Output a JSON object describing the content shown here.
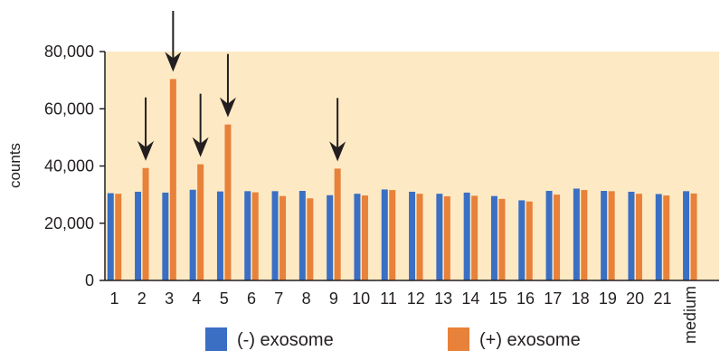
{
  "chart_data": {
    "type": "bar",
    "ylabel": "counts",
    "ylim": [
      0,
      80000
    ],
    "yticks": [
      "0",
      "20,000",
      "40,000",
      "60,000",
      "80,000"
    ],
    "ytick_values": [
      0,
      20000,
      40000,
      60000,
      80000
    ],
    "categories": [
      "1",
      "2",
      "3",
      "4",
      "5",
      "6",
      "7",
      "8",
      "9",
      "10",
      "11",
      "12",
      "13",
      "14",
      "15",
      "16",
      "17",
      "18",
      "19",
      "20",
      "21",
      "medium"
    ],
    "series": [
      {
        "name": "(-) exosome",
        "color": "#3a6fc4",
        "values": [
          30500,
          31000,
          30700,
          31700,
          31100,
          31200,
          31200,
          31300,
          29800,
          30300,
          31800,
          31000,
          30300,
          30700,
          29500,
          28000,
          31300,
          32100,
          31300,
          31000,
          30200,
          31200
        ]
      },
      {
        "name": "(+) exosome",
        "color": "#e8813a",
        "values": [
          30300,
          39300,
          70400,
          40600,
          54500,
          30800,
          29500,
          28700,
          39100,
          29700,
          31600,
          30300,
          29400,
          29600,
          28500,
          27600,
          30000,
          31600,
          31200,
          30300,
          29700,
          30400
        ]
      }
    ],
    "highlighted_categories": [
      "2",
      "3",
      "4",
      "5",
      "9"
    ],
    "plot_background": "#fdeac4",
    "grid": false,
    "legend_position": "bottom"
  }
}
